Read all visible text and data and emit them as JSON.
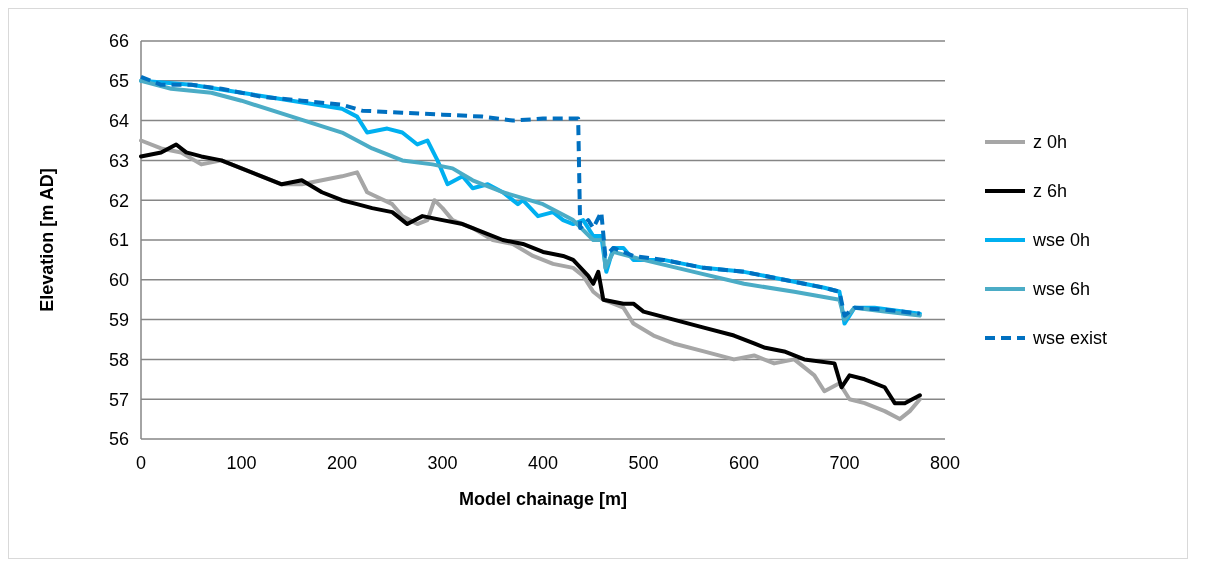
{
  "chart_data": {
    "type": "line",
    "xlabel": "Model chainage [m]",
    "ylabel": "Elevation [m AD]",
    "xlim": [
      0,
      800
    ],
    "xticks": [
      0,
      100,
      200,
      300,
      400,
      500,
      600,
      700,
      800
    ],
    "ylim": [
      56,
      66
    ],
    "yticks": [
      56,
      57,
      58,
      59,
      60,
      61,
      62,
      63,
      64,
      65,
      66
    ],
    "grid": "y",
    "legend": "right",
    "marker": "none",
    "series": [
      {
        "name": "z 0h",
        "color": "#a6a6a6",
        "line_style": "solid",
        "x": [
          0,
          20,
          40,
          60,
          80,
          100,
          120,
          140,
          160,
          180,
          200,
          215,
          225,
          250,
          260,
          275,
          285,
          292,
          300,
          310,
          330,
          350,
          370,
          390,
          410,
          430,
          440,
          450,
          460,
          480,
          490,
          510,
          530,
          560,
          590,
          610,
          630,
          650,
          670,
          680,
          695,
          705,
          720,
          740,
          755,
          765,
          775
        ],
        "values": [
          63.5,
          63.3,
          63.2,
          62.9,
          63.0,
          62.8,
          62.6,
          62.4,
          62.4,
          62.5,
          62.6,
          62.7,
          62.2,
          61.9,
          61.6,
          61.4,
          61.5,
          62.0,
          61.8,
          61.5,
          61.3,
          61.0,
          60.9,
          60.6,
          60.4,
          60.3,
          60.1,
          59.7,
          59.5,
          59.3,
          58.9,
          58.6,
          58.4,
          58.2,
          58.0,
          58.1,
          57.9,
          58.0,
          57.6,
          57.2,
          57.4,
          57.0,
          56.9,
          56.7,
          56.5,
          56.7,
          57.0
        ]
      },
      {
        "name": "z 6h",
        "color": "#000000",
        "line_style": "solid",
        "x": [
          0,
          20,
          35,
          45,
          60,
          80,
          100,
          120,
          140,
          160,
          180,
          200,
          215,
          230,
          250,
          265,
          280,
          300,
          320,
          340,
          360,
          380,
          400,
          420,
          430,
          445,
          450,
          455,
          460,
          480,
          490,
          500,
          530,
          560,
          590,
          610,
          620,
          640,
          660,
          690,
          697,
          705,
          720,
          740,
          750,
          760,
          775
        ],
        "values": [
          63.1,
          63.2,
          63.4,
          63.2,
          63.1,
          63.0,
          62.8,
          62.6,
          62.4,
          62.5,
          62.2,
          62.0,
          61.9,
          61.8,
          61.7,
          61.4,
          61.6,
          61.5,
          61.4,
          61.2,
          61.0,
          60.9,
          60.7,
          60.6,
          60.5,
          60.1,
          59.9,
          60.2,
          59.5,
          59.4,
          59.4,
          59.2,
          59.0,
          58.8,
          58.6,
          58.4,
          58.3,
          58.2,
          58.0,
          57.9,
          57.3,
          57.6,
          57.5,
          57.3,
          56.9,
          56.9,
          57.1
        ]
      },
      {
        "name": "wse 0h",
        "color": "#00b0f0",
        "line_style": "solid",
        "x": [
          0,
          50,
          100,
          150,
          200,
          215,
          225,
          245,
          260,
          275,
          285,
          295,
          305,
          320,
          330,
          345,
          360,
          375,
          380,
          395,
          410,
          420,
          430,
          440,
          450,
          458,
          463,
          470,
          480,
          490,
          520,
          560,
          600,
          640,
          680,
          695,
          700,
          710,
          730,
          760,
          775
        ],
        "values": [
          65.0,
          64.9,
          64.7,
          64.5,
          64.3,
          64.1,
          63.7,
          63.8,
          63.7,
          63.4,
          63.5,
          63.0,
          62.4,
          62.6,
          62.3,
          62.4,
          62.2,
          61.9,
          62.0,
          61.6,
          61.7,
          61.5,
          61.4,
          61.5,
          61.1,
          61.1,
          60.2,
          60.8,
          60.8,
          60.5,
          60.5,
          60.3,
          60.2,
          60.0,
          59.8,
          59.7,
          58.9,
          59.3,
          59.3,
          59.2,
          59.15
        ]
      },
      {
        "name": "wse 6h",
        "color": "#4bacc6",
        "line_style": "solid",
        "x": [
          0,
          30,
          70,
          100,
          150,
          200,
          230,
          260,
          290,
          310,
          330,
          360,
          400,
          430,
          450,
          460,
          462,
          470,
          500,
          550,
          600,
          650,
          695,
          700,
          710,
          740,
          775
        ],
        "values": [
          65.0,
          64.8,
          64.7,
          64.5,
          64.1,
          63.7,
          63.3,
          63.0,
          62.9,
          62.8,
          62.5,
          62.2,
          61.9,
          61.5,
          61.0,
          61.0,
          60.3,
          60.7,
          60.5,
          60.2,
          59.9,
          59.7,
          59.5,
          59.0,
          59.3,
          59.2,
          59.1
        ]
      },
      {
        "name": "wse exist",
        "color": "#0070c0",
        "line_style": "dashed",
        "x": [
          0,
          20,
          50,
          80,
          120,
          160,
          200,
          220,
          260,
          300,
          340,
          370,
          400,
          435,
          437,
          445,
          450,
          458,
          462,
          470,
          490,
          520,
          560,
          600,
          640,
          680,
          695,
          700,
          710,
          740,
          775
        ],
        "values": [
          65.1,
          64.9,
          64.9,
          64.8,
          64.6,
          64.5,
          64.4,
          64.25,
          64.2,
          64.15,
          64.1,
          64.0,
          64.05,
          64.05,
          61.3,
          61.5,
          61.3,
          61.7,
          60.6,
          60.8,
          60.6,
          60.5,
          60.3,
          60.2,
          60.0,
          59.8,
          59.7,
          59.1,
          59.3,
          59.25,
          59.15
        ]
      }
    ]
  }
}
